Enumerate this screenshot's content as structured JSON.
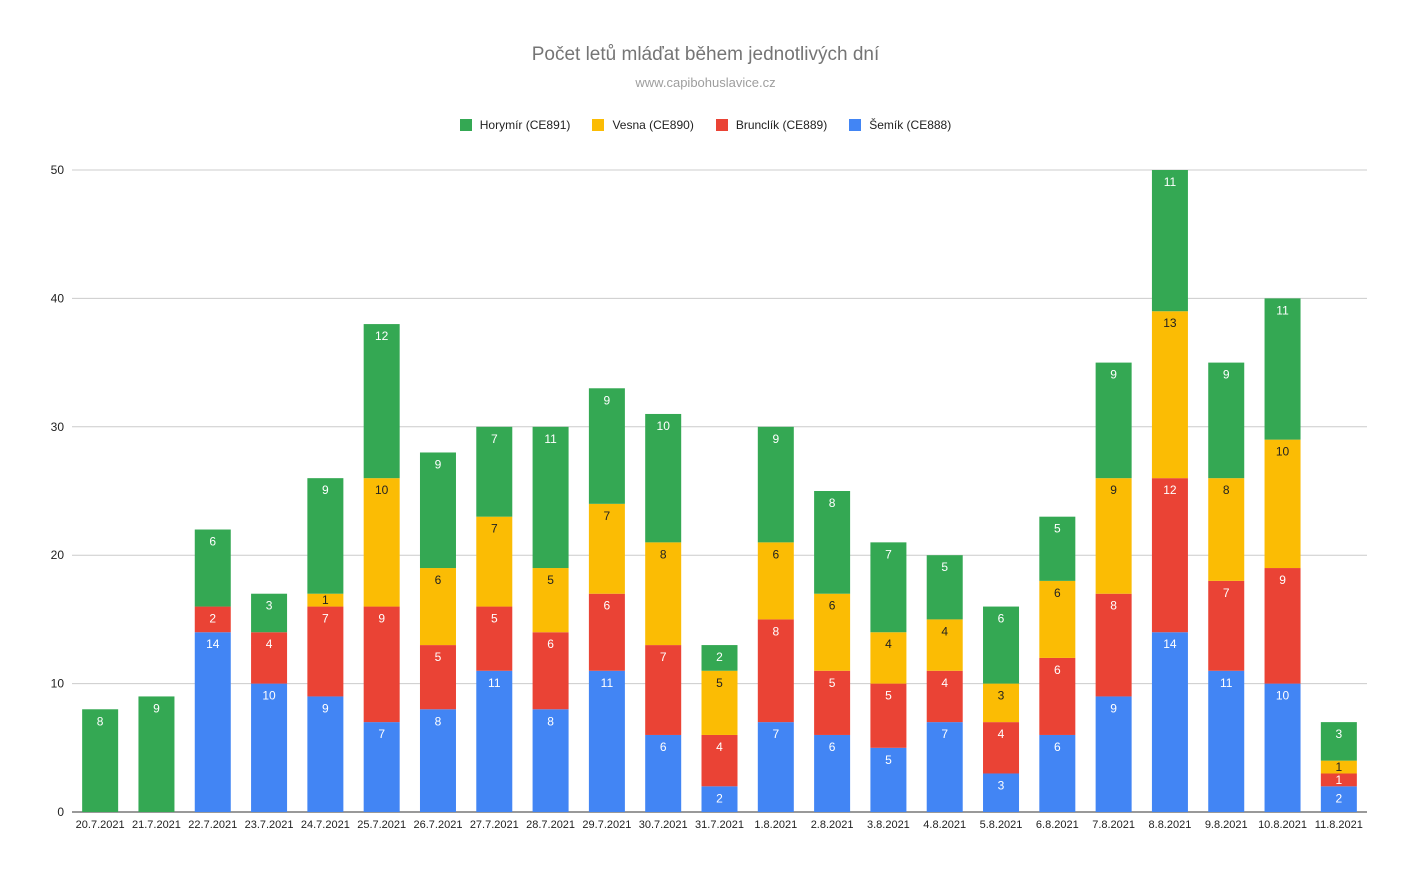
{
  "chart_data": {
    "type": "bar",
    "stacked": true,
    "title": "Počet letů mláďat během jednotlivých dní",
    "subtitle": "www.capibohuslavice.cz",
    "ylim": [
      0,
      50
    ],
    "yticks": [
      0,
      10,
      20,
      30,
      40,
      50
    ],
    "grid": true,
    "legend_position": "top",
    "categories": [
      "20.7.2021",
      "21.7.2021",
      "22.7.2021",
      "23.7.2021",
      "24.7.2021",
      "25.7.2021",
      "26.7.2021",
      "27.7.2021",
      "28.7.2021",
      "29.7.2021",
      "30.7.2021",
      "31.7.2021",
      "1.8.2021",
      "2.8.2021",
      "3.8.2021",
      "4.8.2021",
      "5.8.2021",
      "6.8.2021",
      "7.8.2021",
      "8.8.2021",
      "9.8.2021",
      "10.8.2021",
      "11.8.2021"
    ],
    "series": [
      {
        "name": "Šemík (CE888)",
        "color": "#4285f4",
        "label_color": "#ffffff",
        "values": [
          0,
          0,
          14,
          10,
          9,
          7,
          8,
          11,
          8,
          11,
          6,
          2,
          7,
          6,
          5,
          7,
          3,
          6,
          9,
          14,
          11,
          10,
          2
        ]
      },
      {
        "name": "Brunclík (CE889)",
        "color": "#ea4335",
        "label_color": "#ffffff",
        "values": [
          0,
          0,
          2,
          4,
          7,
          9,
          5,
          5,
          6,
          6,
          7,
          4,
          8,
          5,
          5,
          4,
          4,
          6,
          8,
          12,
          7,
          9,
          1
        ]
      },
      {
        "name": "Vesna (CE890)",
        "color": "#fbbc04",
        "label_color": "#222222",
        "values": [
          0,
          0,
          0,
          0,
          1,
          10,
          6,
          7,
          5,
          7,
          8,
          5,
          6,
          6,
          4,
          4,
          3,
          6,
          9,
          13,
          8,
          10,
          1
        ]
      },
      {
        "name": "Horymír (CE891)",
        "color": "#34a853",
        "label_color": "#ffffff",
        "values": [
          8,
          9,
          6,
          3,
          9,
          12,
          9,
          7,
          11,
          9,
          10,
          2,
          9,
          8,
          7,
          5,
          6,
          5,
          9,
          11,
          9,
          11,
          3
        ]
      }
    ],
    "legend_order": [
      "Horymír (CE891)",
      "Vesna (CE890)",
      "Brunclík (CE889)",
      "Šemík (CE888)"
    ]
  }
}
